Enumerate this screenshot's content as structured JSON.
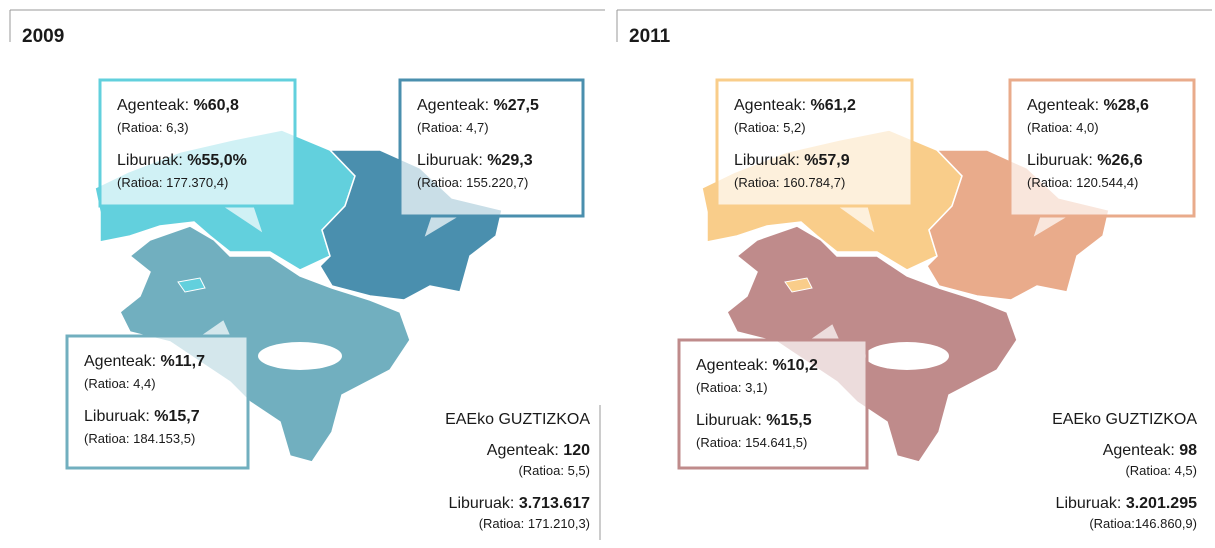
{
  "panels": [
    {
      "year": "2009",
      "callouts": [
        {
          "agents_label": "Agenteak: ",
          "agents_value": "%60,8",
          "agents_ratio": "(Ratioa: 6,3)",
          "books_label": "Liburuak: ",
          "books_value": "%55,0%",
          "books_ratio": "(Ratioa: 177.370,4)"
        },
        {
          "agents_label": "Agenteak: ",
          "agents_value": "%27,5",
          "agents_ratio": "(Ratioa: 4,7)",
          "books_label": "Liburuak: ",
          "books_value": "%29,3",
          "books_ratio": "(Ratioa: 155.220,7)"
        },
        {
          "agents_label": "Agenteak: ",
          "agents_value": "%11,7",
          "agents_ratio": "(Ratioa: 4,4)",
          "books_label": "Liburuak: ",
          "books_value": "%15,7",
          "books_ratio": "(Ratioa: 184.153,5)"
        }
      ],
      "total": {
        "title": "EAEko GUZTIZKOA",
        "agents_label": "Agenteak: ",
        "agents_value": "120",
        "agents_ratio": "(Ratioa: 5,5)",
        "books_label": "Liburuak: ",
        "books_value": "3.713.617",
        "books_ratio": "(Ratioa: 171.210,3)"
      }
    },
    {
      "year": "2011",
      "callouts": [
        {
          "agents_label": "Agenteak: ",
          "agents_value": "%61,2",
          "agents_ratio": "(Ratioa: 5,2)",
          "books_label": "Liburuak: ",
          "books_value": "%57,9",
          "books_ratio": "(Ratioa: 160.784,7)"
        },
        {
          "agents_label": "Agenteak: ",
          "agents_value": "%28,6",
          "agents_ratio": "(Ratioa: 4,0)",
          "books_label": "Liburuak: ",
          "books_value": "%26,6",
          "books_ratio": "(Ratioa: 120.544,4)"
        },
        {
          "agents_label": "Agenteak: ",
          "agents_value": "%10,2",
          "agents_ratio": "(Ratioa: 3,1)",
          "books_label": "Liburuak: ",
          "books_value": "%15,5",
          "books_ratio": "(Ratioa: 154.641,5)"
        }
      ],
      "total": {
        "title": "EAEko GUZTIZKOA",
        "agents_label": "Agenteak: ",
        "agents_value": "98",
        "agents_ratio": "(Ratioa: 4,5)",
        "books_label": "Liburuak: ",
        "books_value": "3.201.295",
        "books_ratio": "(Ratioa:146.860,9)"
      }
    }
  ]
}
